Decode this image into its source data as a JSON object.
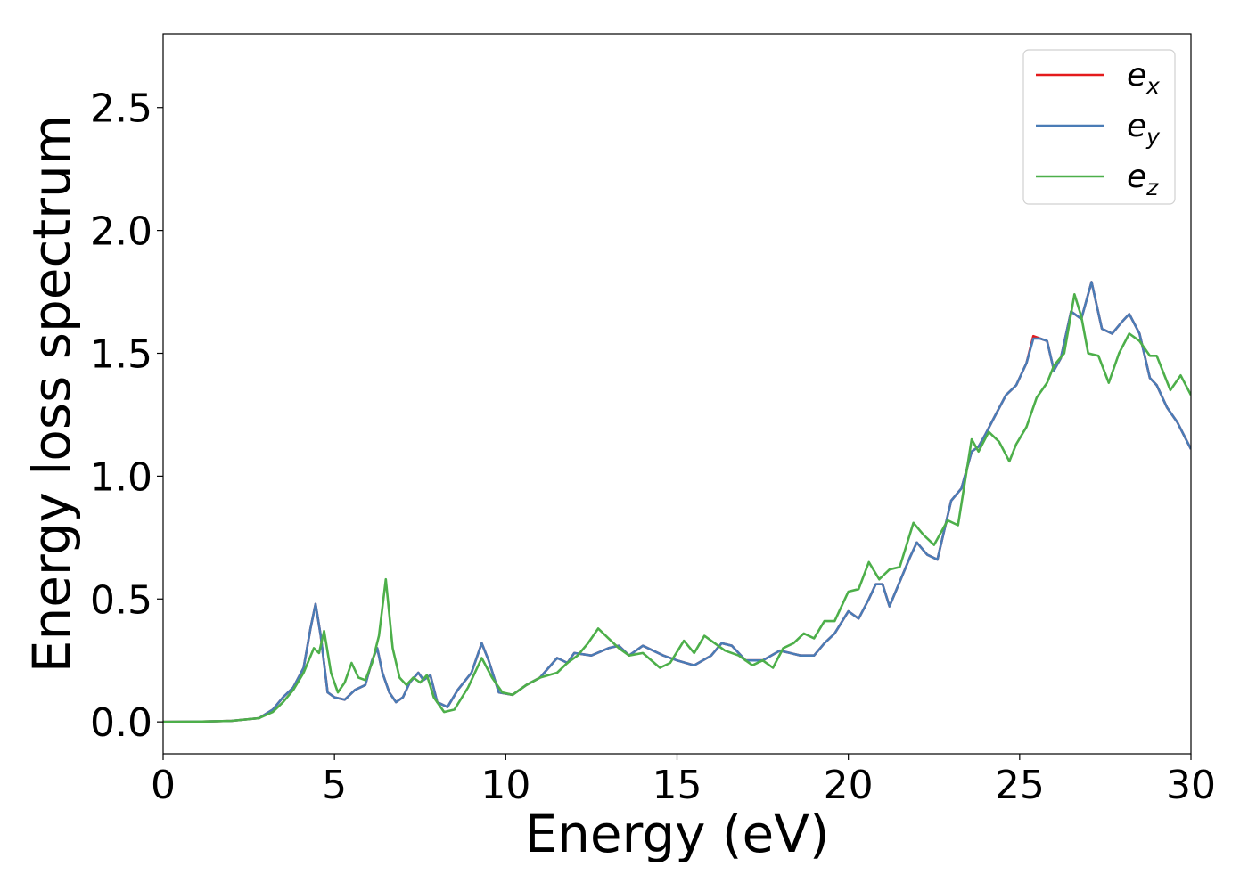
{
  "chart_data": {
    "type": "line",
    "title": "",
    "xlabel": "Energy (eV)",
    "ylabel": "Energy loss spectrum",
    "xlim": [
      0,
      30
    ],
    "ylim": [
      -0.13,
      2.8
    ],
    "xticks": [
      0,
      5,
      10,
      15,
      20,
      25,
      30
    ],
    "xtick_labels": [
      "0",
      "5",
      "10",
      "15",
      "20",
      "25",
      "30"
    ],
    "yticks": [
      0.0,
      0.5,
      1.0,
      1.5,
      2.0,
      2.5
    ],
    "ytick_labels": [
      "0.0",
      "0.5",
      "1.0",
      "1.5",
      "2.0",
      "2.5"
    ],
    "grid": false,
    "legend_position": "top-right",
    "series": [
      {
        "name": "e_x",
        "legend_base": "e",
        "legend_sub": "x",
        "color": "#e41a1c",
        "x": [
          0,
          1,
          2,
          2.8,
          3.2,
          3.5,
          3.8,
          4.1,
          4.3,
          4.45,
          4.6,
          4.8,
          5.0,
          5.3,
          5.6,
          5.9,
          6.1,
          6.25,
          6.4,
          6.6,
          6.8,
          7.0,
          7.2,
          7.45,
          7.6,
          7.8,
          8.0,
          8.3,
          8.6,
          9.0,
          9.3,
          9.5,
          9.8,
          10.2,
          10.6,
          11.0,
          11.5,
          11.8,
          12.0,
          12.5,
          13.0,
          13.3,
          13.6,
          14.0,
          14.3,
          14.6,
          15.0,
          15.5,
          16.0,
          16.3,
          16.6,
          17.0,
          17.5,
          18.0,
          18.3,
          18.6,
          19.0,
          19.3,
          19.6,
          20.0,
          20.3,
          20.6,
          20.8,
          21.0,
          21.2,
          21.5,
          21.8,
          22.0,
          22.3,
          22.6,
          23.0,
          23.3,
          23.6,
          23.8,
          24.0,
          24.3,
          24.6,
          24.9,
          25.2,
          25.4,
          25.6,
          25.8,
          26.0,
          26.2,
          26.5,
          26.8,
          27.1,
          27.4,
          27.7,
          28.0,
          28.2,
          28.5,
          28.8,
          29.0,
          29.3,
          29.6,
          30.0
        ],
        "y": [
          0.0,
          0.001,
          0.004,
          0.015,
          0.05,
          0.1,
          0.14,
          0.22,
          0.38,
          0.48,
          0.35,
          0.12,
          0.1,
          0.09,
          0.13,
          0.15,
          0.25,
          0.3,
          0.2,
          0.12,
          0.08,
          0.1,
          0.16,
          0.2,
          0.17,
          0.19,
          0.08,
          0.06,
          0.13,
          0.2,
          0.32,
          0.25,
          0.12,
          0.11,
          0.15,
          0.18,
          0.26,
          0.24,
          0.28,
          0.27,
          0.3,
          0.31,
          0.27,
          0.31,
          0.29,
          0.27,
          0.25,
          0.23,
          0.27,
          0.32,
          0.31,
          0.25,
          0.25,
          0.29,
          0.28,
          0.27,
          0.27,
          0.32,
          0.36,
          0.45,
          0.42,
          0.5,
          0.56,
          0.56,
          0.47,
          0.57,
          0.67,
          0.73,
          0.68,
          0.66,
          0.9,
          0.95,
          1.1,
          1.12,
          1.17,
          1.25,
          1.33,
          1.37,
          1.46,
          1.57,
          1.56,
          1.55,
          1.43,
          1.48,
          1.67,
          1.64,
          1.79,
          1.6,
          1.58,
          1.63,
          1.66,
          1.58,
          1.4,
          1.37,
          1.28,
          1.22,
          1.11
        ]
      },
      {
        "name": "e_y",
        "legend_base": "e",
        "legend_sub": "y",
        "color": "#4a7cb6",
        "x": [
          0,
          1,
          2,
          2.8,
          3.2,
          3.5,
          3.8,
          4.1,
          4.3,
          4.45,
          4.6,
          4.8,
          5.0,
          5.3,
          5.6,
          5.9,
          6.1,
          6.25,
          6.4,
          6.6,
          6.8,
          7.0,
          7.2,
          7.45,
          7.6,
          7.8,
          8.0,
          8.3,
          8.6,
          9.0,
          9.3,
          9.5,
          9.8,
          10.2,
          10.6,
          11.0,
          11.5,
          11.8,
          12.0,
          12.5,
          13.0,
          13.3,
          13.6,
          14.0,
          14.3,
          14.6,
          15.0,
          15.5,
          16.0,
          16.3,
          16.6,
          17.0,
          17.5,
          18.0,
          18.3,
          18.6,
          19.0,
          19.3,
          19.6,
          20.0,
          20.3,
          20.6,
          20.8,
          21.0,
          21.2,
          21.5,
          21.8,
          22.0,
          22.3,
          22.6,
          23.0,
          23.3,
          23.6,
          23.8,
          24.0,
          24.3,
          24.6,
          24.9,
          25.2,
          25.4,
          25.6,
          25.8,
          26.0,
          26.2,
          26.5,
          26.8,
          27.1,
          27.4,
          27.7,
          28.0,
          28.2,
          28.5,
          28.8,
          29.0,
          29.3,
          29.6,
          30.0
        ],
        "y": [
          0.0,
          0.001,
          0.004,
          0.015,
          0.05,
          0.1,
          0.14,
          0.22,
          0.38,
          0.48,
          0.35,
          0.12,
          0.1,
          0.09,
          0.13,
          0.15,
          0.25,
          0.3,
          0.2,
          0.12,
          0.08,
          0.1,
          0.16,
          0.2,
          0.17,
          0.19,
          0.08,
          0.06,
          0.13,
          0.2,
          0.32,
          0.25,
          0.12,
          0.11,
          0.15,
          0.18,
          0.26,
          0.24,
          0.28,
          0.27,
          0.3,
          0.31,
          0.27,
          0.31,
          0.29,
          0.27,
          0.25,
          0.23,
          0.27,
          0.32,
          0.31,
          0.25,
          0.25,
          0.29,
          0.28,
          0.27,
          0.27,
          0.32,
          0.36,
          0.45,
          0.42,
          0.5,
          0.56,
          0.56,
          0.47,
          0.57,
          0.67,
          0.73,
          0.68,
          0.66,
          0.9,
          0.95,
          1.1,
          1.12,
          1.17,
          1.25,
          1.33,
          1.37,
          1.46,
          1.56,
          1.56,
          1.55,
          1.43,
          1.48,
          1.67,
          1.64,
          1.79,
          1.6,
          1.58,
          1.63,
          1.66,
          1.58,
          1.4,
          1.37,
          1.28,
          1.22,
          1.11
        ]
      },
      {
        "name": "e_z",
        "legend_base": "e",
        "legend_sub": "z",
        "color": "#4daf4a",
        "x": [
          0,
          1,
          2,
          2.8,
          3.2,
          3.5,
          3.8,
          4.1,
          4.4,
          4.55,
          4.7,
          4.9,
          5.1,
          5.3,
          5.5,
          5.7,
          5.9,
          6.1,
          6.3,
          6.5,
          6.7,
          6.9,
          7.1,
          7.3,
          7.5,
          7.7,
          7.9,
          8.2,
          8.5,
          8.9,
          9.3,
          9.6,
          9.9,
          10.2,
          10.6,
          11.0,
          11.5,
          11.8,
          12.1,
          12.4,
          12.7,
          13.0,
          13.3,
          13.6,
          14.0,
          14.5,
          14.8,
          15.2,
          15.5,
          15.8,
          16.1,
          16.4,
          16.8,
          17.2,
          17.5,
          17.8,
          18.1,
          18.4,
          18.7,
          19.0,
          19.3,
          19.6,
          20.0,
          20.3,
          20.6,
          20.9,
          21.2,
          21.5,
          21.9,
          22.2,
          22.5,
          22.9,
          23.2,
          23.6,
          23.8,
          24.1,
          24.4,
          24.7,
          24.9,
          25.2,
          25.5,
          25.8,
          26.0,
          26.3,
          26.6,
          26.8,
          27.0,
          27.3,
          27.6,
          27.9,
          28.2,
          28.5,
          28.8,
          29.0,
          29.4,
          29.7,
          30.0
        ],
        "y": [
          0.0,
          0.001,
          0.004,
          0.015,
          0.04,
          0.08,
          0.13,
          0.2,
          0.3,
          0.28,
          0.37,
          0.2,
          0.12,
          0.16,
          0.24,
          0.18,
          0.17,
          0.24,
          0.35,
          0.58,
          0.3,
          0.18,
          0.15,
          0.18,
          0.16,
          0.19,
          0.1,
          0.04,
          0.05,
          0.14,
          0.26,
          0.18,
          0.12,
          0.11,
          0.15,
          0.18,
          0.2,
          0.24,
          0.27,
          0.32,
          0.38,
          0.34,
          0.3,
          0.27,
          0.28,
          0.22,
          0.24,
          0.33,
          0.28,
          0.35,
          0.32,
          0.29,
          0.27,
          0.23,
          0.25,
          0.22,
          0.3,
          0.32,
          0.36,
          0.34,
          0.41,
          0.41,
          0.53,
          0.54,
          0.65,
          0.58,
          0.62,
          0.63,
          0.81,
          0.76,
          0.72,
          0.82,
          0.8,
          1.15,
          1.1,
          1.18,
          1.14,
          1.06,
          1.13,
          1.2,
          1.32,
          1.38,
          1.45,
          1.5,
          1.74,
          1.65,
          1.5,
          1.49,
          1.38,
          1.5,
          1.58,
          1.55,
          1.49,
          1.49,
          1.35,
          1.41,
          1.33
        ]
      }
    ]
  }
}
